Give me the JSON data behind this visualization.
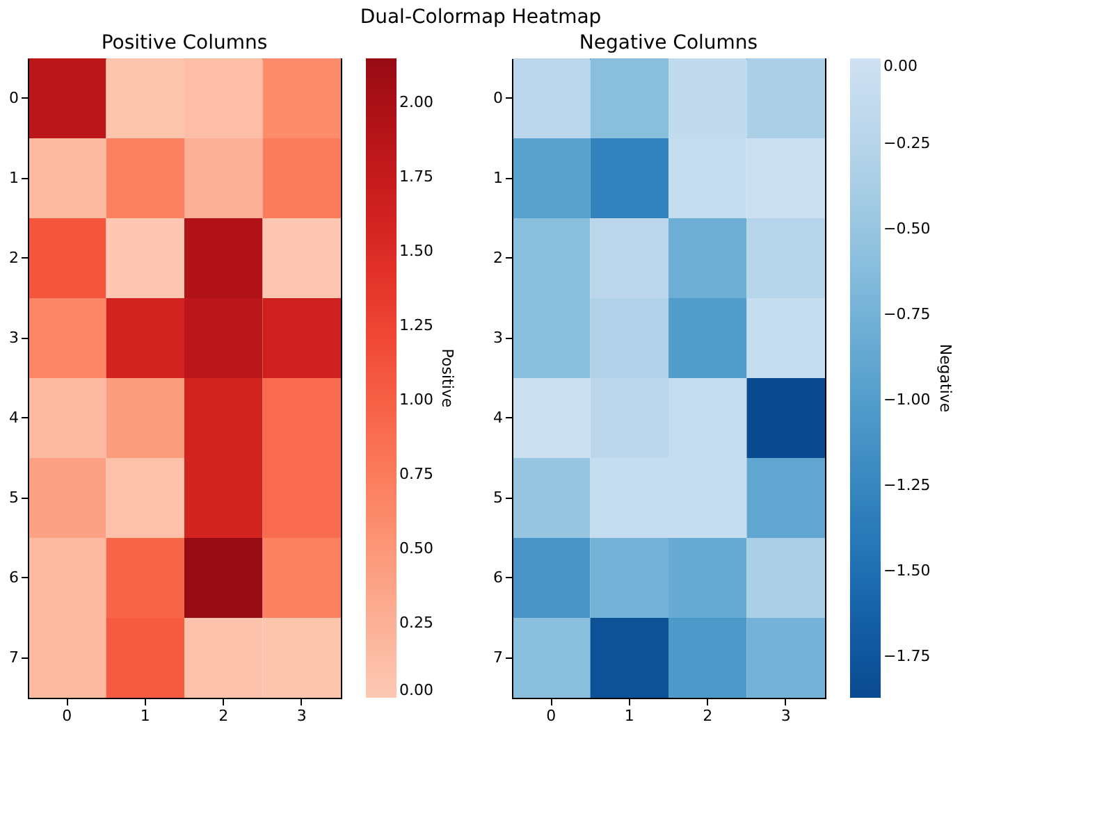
{
  "chart_data": [
    {
      "type": "heatmap",
      "title": "Positive Columns",
      "annotations": [
        "Dual-Colormap Heatmap"
      ],
      "clabel": "Positive",
      "categories": [
        "0",
        "1",
        "2",
        "3"
      ],
      "y_categories": [
        "0",
        "1",
        "2",
        "3",
        "4",
        "5",
        "6",
        "7"
      ],
      "cells": [
        [
          1.85,
          0.05,
          0.1,
          0.6
        ],
        [
          0.15,
          0.7,
          0.25,
          0.75
        ],
        [
          1.1,
          0.02,
          1.95,
          0.03
        ],
        [
          0.65,
          1.6,
          1.85,
          1.65
        ],
        [
          0.15,
          0.45,
          1.6,
          0.9
        ],
        [
          0.4,
          0.08,
          1.6,
          0.9
        ],
        [
          0.15,
          0.95,
          2.15,
          0.7
        ],
        [
          0.15,
          1.05,
          0.07,
          0.05
        ]
      ],
      "clim": [
        0,
        2.15
      ],
      "cticks": [
        {
          "value": 0,
          "label": "0.00"
        },
        {
          "value": 0.25,
          "label": "0.25"
        },
        {
          "value": 0.5,
          "label": "0.50"
        },
        {
          "value": 0.75,
          "label": "0.75"
        },
        {
          "value": 1,
          "label": "1.00"
        },
        {
          "value": 1.25,
          "label": "1.25"
        },
        {
          "value": 1.5,
          "label": "1.50"
        },
        {
          "value": 1.75,
          "label": "1.75"
        },
        {
          "value": 2,
          "label": "2.00"
        }
      ]
    },
    {
      "type": "heatmap",
      "title": "Negative Columns",
      "clabel": "Negative",
      "categories": [
        "0",
        "1",
        "2",
        "3"
      ],
      "y_categories": [
        "0",
        "1",
        "2",
        "3",
        "4",
        "5",
        "6",
        "7"
      ],
      "cells": [
        [
          -0.2,
          -0.6,
          -0.15,
          -0.35
        ],
        [
          -0.95,
          -1.3,
          -0.1,
          -0.05
        ],
        [
          -0.6,
          -0.2,
          -0.8,
          -0.25
        ],
        [
          -0.6,
          -0.3,
          -1.0,
          -0.1
        ],
        [
          -0.05,
          -0.2,
          -0.1,
          -1.87
        ],
        [
          -0.5,
          -0.1,
          -0.1,
          -0.9
        ],
        [
          -1.1,
          -0.75,
          -0.85,
          -0.35
        ],
        [
          -0.6,
          -1.8,
          -1.05,
          -0.75
        ]
      ],
      "clim": [
        -1.87,
        0
      ],
      "cticks": [
        {
          "value": 0,
          "label": "0.00"
        },
        {
          "value": -0.25,
          "label": "−0.25"
        },
        {
          "value": -0.5,
          "label": "−0.50"
        },
        {
          "value": -0.75,
          "label": "−0.75"
        },
        {
          "value": -1,
          "label": "−1.00"
        },
        {
          "value": -1.25,
          "label": "−1.25"
        },
        {
          "value": -1.5,
          "label": "−1.50"
        },
        {
          "value": -1.75,
          "label": "−1.75"
        }
      ]
    }
  ]
}
